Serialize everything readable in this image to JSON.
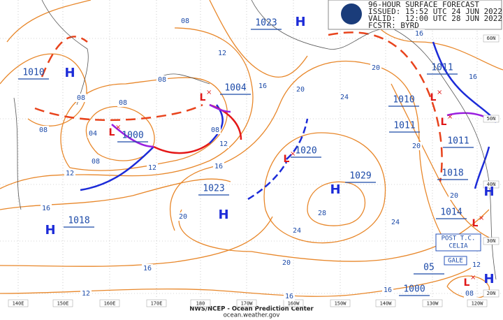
{
  "header": {
    "title": "96-HOUR SURFACE FORECAST",
    "issued": "ISSUED: 15:52 UTC 24 JUN 2022",
    "valid": "VALID:  12:00 UTC 28 JUN 2022",
    "forecaster": "FCSTR: BYRD"
  },
  "footer": {
    "source": "NWS/NCEP - Ocean Prediction Center",
    "url": "ocean.weather.gov"
  },
  "longitudes": [
    "140E",
    "150E",
    "160E",
    "170E",
    "180",
    "170W",
    "160W",
    "150W",
    "140W",
    "130W",
    "120W"
  ],
  "latitudes": [
    "60N",
    "50N",
    "40N",
    "30N",
    "20N"
  ],
  "centers": [
    "H",
    "L",
    "L",
    "H",
    "L",
    "H",
    "H",
    "H",
    "L",
    "L",
    "L",
    "L",
    "H",
    "H"
  ],
  "pressures": [
    "1010",
    "1000",
    "1004",
    "1023",
    "1020",
    "1029",
    "1023",
    "1018",
    "1010",
    "1011",
    "1011",
    "1011",
    "1018",
    "1014",
    "1000",
    "05"
  ],
  "isobar_labels": [
    "08",
    "08",
    "08",
    "08",
    "08",
    "08",
    "08",
    "08",
    "12",
    "12",
    "12",
    "12",
    "12",
    "12",
    "16",
    "16",
    "16",
    "16",
    "16",
    "16",
    "16",
    "16",
    "04",
    "20",
    "20",
    "20",
    "20",
    "20",
    "20",
    "24",
    "24",
    "24",
    "28"
  ],
  "annotations": [
    "POST T.C.",
    "CELIA",
    "GALE"
  ]
}
